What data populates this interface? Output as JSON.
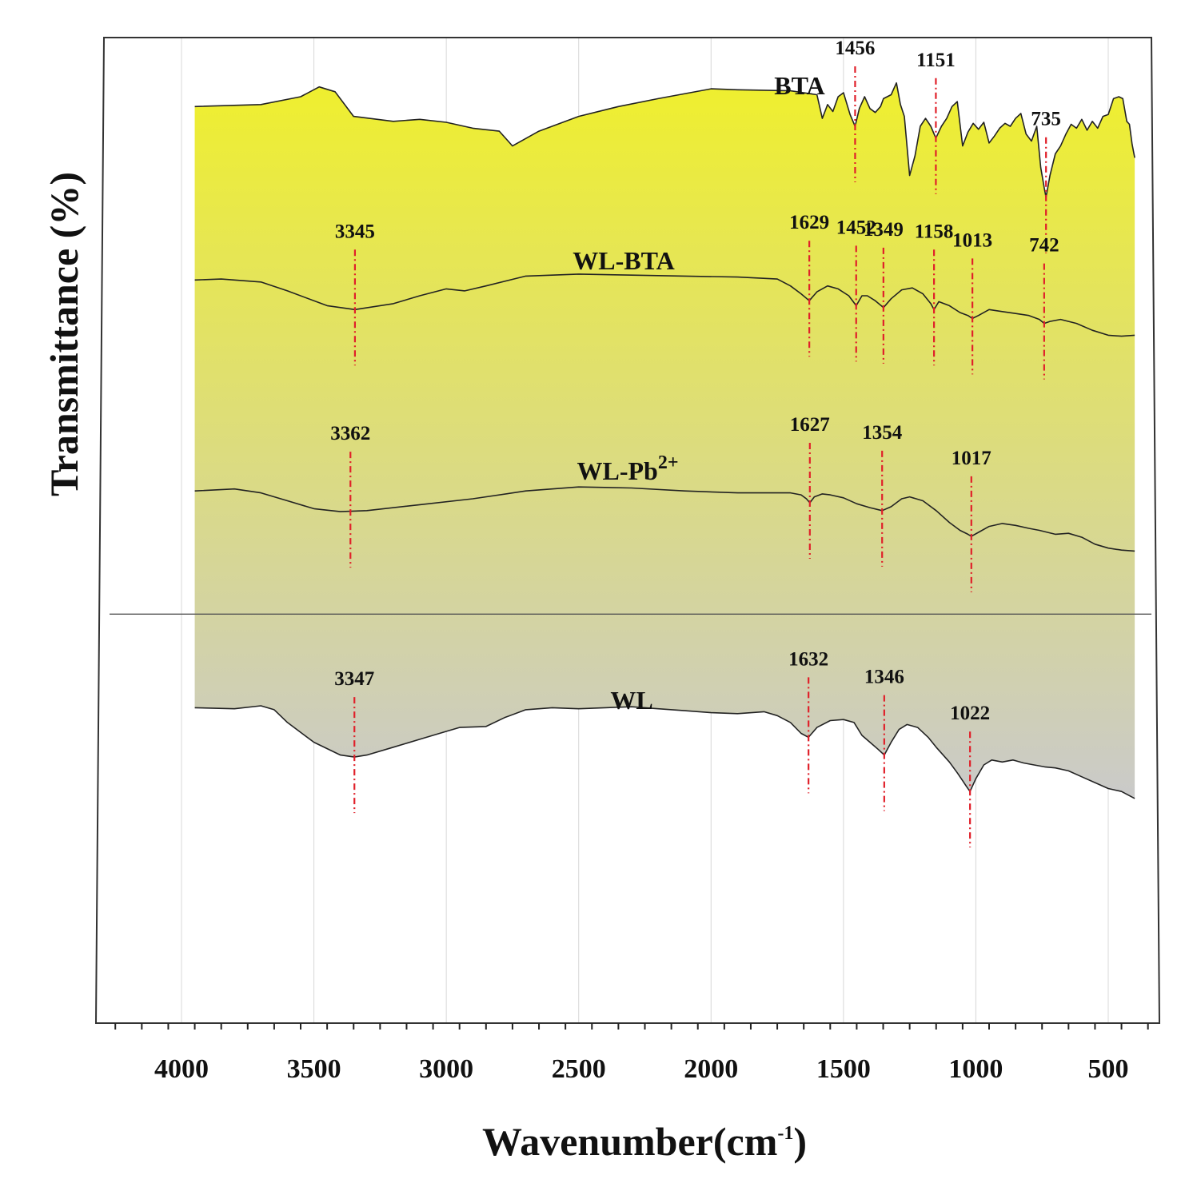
{
  "chart_data": {
    "type": "line",
    "title": "",
    "xlabel": "Wavenumber(cm",
    "xlabel_sup": "-1",
    "xlabel_close": ")",
    "ylabel": "Transmittance (%)",
    "xlim": [
      4300,
      300
    ],
    "x_reversed": true,
    "grid": "vertical",
    "x_ticks": [
      4000,
      3500,
      3000,
      2500,
      2000,
      1500,
      1000,
      500
    ],
    "x_tick_labels": [
      "4000",
      "3500",
      "3000",
      "2500",
      "2000",
      "1500",
      "1000",
      "500"
    ],
    "fill_gradient": [
      "#efef2e",
      "#cacaca"
    ],
    "colors": {
      "line": "#222222",
      "marker": "#e0202a",
      "frame": "#333333",
      "grid": "#d8d8d8"
    },
    "series": [
      {
        "name": "BTA",
        "name_main": "BTA",
        "name_sup": "",
        "points": [
          [
            3950,
            0.07
          ],
          [
            3700,
            0.068
          ],
          [
            3550,
            0.06
          ],
          [
            3480,
            0.05
          ],
          [
            3420,
            0.055
          ],
          [
            3350,
            0.08
          ],
          [
            3200,
            0.085
          ],
          [
            3100,
            0.083
          ],
          [
            3000,
            0.086
          ],
          [
            2900,
            0.092
          ],
          [
            2800,
            0.095
          ],
          [
            2750,
            0.11
          ],
          [
            2650,
            0.095
          ],
          [
            2500,
            0.08
          ],
          [
            2350,
            0.07
          ],
          [
            2200,
            0.062
          ],
          [
            2000,
            0.052
          ],
          [
            1900,
            0.053
          ],
          [
            1700,
            0.054
          ],
          [
            1600,
            0.058
          ],
          [
            1580,
            0.082
          ],
          [
            1560,
            0.068
          ],
          [
            1540,
            0.075
          ],
          [
            1520,
            0.06
          ],
          [
            1500,
            0.056
          ],
          [
            1475,
            0.078
          ],
          [
            1456,
            0.09
          ],
          [
            1440,
            0.072
          ],
          [
            1420,
            0.06
          ],
          [
            1400,
            0.072
          ],
          [
            1380,
            0.076
          ],
          [
            1360,
            0.07
          ],
          [
            1349,
            0.062
          ],
          [
            1320,
            0.058
          ],
          [
            1300,
            0.046
          ],
          [
            1285,
            0.068
          ],
          [
            1270,
            0.08
          ],
          [
            1250,
            0.14
          ],
          [
            1230,
            0.12
          ],
          [
            1210,
            0.09
          ],
          [
            1190,
            0.082
          ],
          [
            1170,
            0.09
          ],
          [
            1151,
            0.102
          ],
          [
            1130,
            0.09
          ],
          [
            1110,
            0.082
          ],
          [
            1090,
            0.07
          ],
          [
            1070,
            0.065
          ],
          [
            1050,
            0.11
          ],
          [
            1030,
            0.096
          ],
          [
            1010,
            0.087
          ],
          [
            990,
            0.093
          ],
          [
            970,
            0.086
          ],
          [
            950,
            0.107
          ],
          [
            930,
            0.1
          ],
          [
            910,
            0.092
          ],
          [
            890,
            0.087
          ],
          [
            870,
            0.09
          ],
          [
            850,
            0.082
          ],
          [
            830,
            0.077
          ],
          [
            810,
            0.098
          ],
          [
            790,
            0.105
          ],
          [
            770,
            0.09
          ],
          [
            755,
            0.132
          ],
          [
            740,
            0.155
          ],
          [
            735,
            0.162
          ],
          [
            720,
            0.14
          ],
          [
            700,
            0.118
          ],
          [
            680,
            0.11
          ],
          [
            660,
            0.098
          ],
          [
            640,
            0.088
          ],
          [
            620,
            0.092
          ],
          [
            600,
            0.083
          ],
          [
            580,
            0.094
          ],
          [
            560,
            0.085
          ],
          [
            540,
            0.092
          ],
          [
            520,
            0.08
          ],
          [
            500,
            0.078
          ],
          [
            480,
            0.062
          ],
          [
            460,
            0.06
          ],
          [
            445,
            0.062
          ],
          [
            430,
            0.085
          ],
          [
            420,
            0.088
          ],
          [
            410,
            0.108
          ],
          [
            400,
            0.122
          ]
        ],
        "peaks": [
          {
            "label": "1456",
            "x": 1456,
            "y": 0.09
          },
          {
            "label": "1151",
            "x": 1151,
            "y": 0.102
          },
          {
            "label": "735",
            "x": 735,
            "y": 0.162
          }
        ]
      },
      {
        "name": "WL-BTA",
        "name_main": "WL-BTA",
        "name_sup": "",
        "points": [
          [
            3950,
            0.246
          ],
          [
            3850,
            0.245
          ],
          [
            3700,
            0.248
          ],
          [
            3600,
            0.257
          ],
          [
            3450,
            0.272
          ],
          [
            3345,
            0.276
          ],
          [
            3200,
            0.27
          ],
          [
            3100,
            0.262
          ],
          [
            3000,
            0.255
          ],
          [
            2930,
            0.257
          ],
          [
            2850,
            0.252
          ],
          [
            2700,
            0.242
          ],
          [
            2500,
            0.24
          ],
          [
            2300,
            0.241
          ],
          [
            2100,
            0.242
          ],
          [
            1900,
            0.243
          ],
          [
            1750,
            0.245
          ],
          [
            1700,
            0.252
          ],
          [
            1660,
            0.26
          ],
          [
            1629,
            0.267
          ],
          [
            1600,
            0.258
          ],
          [
            1560,
            0.252
          ],
          [
            1520,
            0.255
          ],
          [
            1480,
            0.262
          ],
          [
            1452,
            0.272
          ],
          [
            1430,
            0.262
          ],
          [
            1410,
            0.262
          ],
          [
            1380,
            0.267
          ],
          [
            1349,
            0.274
          ],
          [
            1320,
            0.265
          ],
          [
            1280,
            0.256
          ],
          [
            1240,
            0.254
          ],
          [
            1200,
            0.26
          ],
          [
            1170,
            0.27
          ],
          [
            1158,
            0.276
          ],
          [
            1140,
            0.268
          ],
          [
            1100,
            0.272
          ],
          [
            1060,
            0.279
          ],
          [
            1030,
            0.282
          ],
          [
            1013,
            0.285
          ],
          [
            990,
            0.282
          ],
          [
            950,
            0.276
          ],
          [
            900,
            0.278
          ],
          [
            850,
            0.28
          ],
          [
            800,
            0.282
          ],
          [
            760,
            0.286
          ],
          [
            742,
            0.29
          ],
          [
            720,
            0.288
          ],
          [
            680,
            0.286
          ],
          [
            620,
            0.29
          ],
          [
            560,
            0.297
          ],
          [
            500,
            0.302
          ],
          [
            450,
            0.303
          ],
          [
            400,
            0.302
          ]
        ],
        "peaks": [
          {
            "label": "3345",
            "x": 3345,
            "y": 0.276
          },
          {
            "label": "1629",
            "x": 1629,
            "y": 0.267
          },
          {
            "label": "1452",
            "x": 1452,
            "y": 0.272
          },
          {
            "label": "1349",
            "x": 1349,
            "y": 0.274
          },
          {
            "label": "1158",
            "x": 1158,
            "y": 0.276
          },
          {
            "label": "1013",
            "x": 1013,
            "y": 0.285
          },
          {
            "label": "742",
            "x": 742,
            "y": 0.29
          }
        ]
      },
      {
        "name": "WL-Pb2+",
        "name_main": "WL-Pb",
        "name_sup": "2+",
        "points": [
          [
            3950,
            0.46
          ],
          [
            3800,
            0.458
          ],
          [
            3700,
            0.462
          ],
          [
            3600,
            0.47
          ],
          [
            3500,
            0.478
          ],
          [
            3400,
            0.481
          ],
          [
            3300,
            0.48
          ],
          [
            3100,
            0.474
          ],
          [
            2900,
            0.468
          ],
          [
            2700,
            0.46
          ],
          [
            2500,
            0.456
          ],
          [
            2300,
            0.457
          ],
          [
            2100,
            0.46
          ],
          [
            1900,
            0.462
          ],
          [
            1700,
            0.462
          ],
          [
            1660,
            0.464
          ],
          [
            1640,
            0.468
          ],
          [
            1627,
            0.472
          ],
          [
            1610,
            0.466
          ],
          [
            1580,
            0.463
          ],
          [
            1550,
            0.464
          ],
          [
            1500,
            0.467
          ],
          [
            1450,
            0.473
          ],
          [
            1400,
            0.477
          ],
          [
            1354,
            0.48
          ],
          [
            1320,
            0.476
          ],
          [
            1280,
            0.468
          ],
          [
            1250,
            0.466
          ],
          [
            1200,
            0.47
          ],
          [
            1150,
            0.48
          ],
          [
            1100,
            0.492
          ],
          [
            1060,
            0.5
          ],
          [
            1030,
            0.504
          ],
          [
            1017,
            0.506
          ],
          [
            990,
            0.502
          ],
          [
            950,
            0.496
          ],
          [
            900,
            0.493
          ],
          [
            850,
            0.495
          ],
          [
            800,
            0.498
          ],
          [
            760,
            0.5
          ],
          [
            700,
            0.504
          ],
          [
            650,
            0.503
          ],
          [
            600,
            0.507
          ],
          [
            550,
            0.514
          ],
          [
            500,
            0.518
          ],
          [
            450,
            0.52
          ],
          [
            400,
            0.521
          ]
        ],
        "peaks": [
          {
            "label": "3362",
            "x": 3362,
            "y": 0.481
          },
          {
            "label": "1627",
            "x": 1627,
            "y": 0.472
          },
          {
            "label": "1354",
            "x": 1354,
            "y": 0.48
          },
          {
            "label": "1017",
            "x": 1017,
            "y": 0.506
          }
        ]
      },
      {
        "name": "WL",
        "name_main": "WL",
        "name_sup": "",
        "points": [
          [
            3950,
            0.68
          ],
          [
            3800,
            0.681
          ],
          [
            3700,
            0.678
          ],
          [
            3650,
            0.682
          ],
          [
            3600,
            0.695
          ],
          [
            3500,
            0.715
          ],
          [
            3400,
            0.728
          ],
          [
            3347,
            0.73
          ],
          [
            3300,
            0.728
          ],
          [
            3200,
            0.72
          ],
          [
            3100,
            0.712
          ],
          [
            3000,
            0.704
          ],
          [
            2950,
            0.7
          ],
          [
            2850,
            0.699
          ],
          [
            2780,
            0.69
          ],
          [
            2700,
            0.682
          ],
          [
            2600,
            0.68
          ],
          [
            2500,
            0.681
          ],
          [
            2400,
            0.68
          ],
          [
            2300,
            0.679
          ],
          [
            2200,
            0.681
          ],
          [
            2100,
            0.683
          ],
          [
            2000,
            0.685
          ],
          [
            1900,
            0.686
          ],
          [
            1800,
            0.684
          ],
          [
            1750,
            0.688
          ],
          [
            1700,
            0.695
          ],
          [
            1660,
            0.706
          ],
          [
            1632,
            0.71
          ],
          [
            1600,
            0.7
          ],
          [
            1550,
            0.693
          ],
          [
            1500,
            0.692
          ],
          [
            1460,
            0.695
          ],
          [
            1430,
            0.708
          ],
          [
            1400,
            0.715
          ],
          [
            1370,
            0.722
          ],
          [
            1346,
            0.728
          ],
          [
            1320,
            0.715
          ],
          [
            1290,
            0.702
          ],
          [
            1260,
            0.697
          ],
          [
            1220,
            0.7
          ],
          [
            1180,
            0.71
          ],
          [
            1150,
            0.72
          ],
          [
            1100,
            0.735
          ],
          [
            1070,
            0.746
          ],
          [
            1050,
            0.754
          ],
          [
            1035,
            0.76
          ],
          [
            1022,
            0.765
          ],
          [
            1000,
            0.752
          ],
          [
            970,
            0.738
          ],
          [
            940,
            0.733
          ],
          [
            900,
            0.735
          ],
          [
            860,
            0.733
          ],
          [
            820,
            0.736
          ],
          [
            780,
            0.738
          ],
          [
            740,
            0.74
          ],
          [
            700,
            0.741
          ],
          [
            650,
            0.744
          ],
          [
            600,
            0.75
          ],
          [
            550,
            0.756
          ],
          [
            500,
            0.762
          ],
          [
            450,
            0.765
          ],
          [
            400,
            0.772
          ]
        ],
        "peaks": [
          {
            "label": "3347",
            "x": 3347,
            "y": 0.73
          },
          {
            "label": "1632",
            "x": 1632,
            "y": 0.71
          },
          {
            "label": "1346",
            "x": 1346,
            "y": 0.728
          },
          {
            "label": "1022",
            "x": 1022,
            "y": 0.765
          }
        ]
      }
    ]
  }
}
